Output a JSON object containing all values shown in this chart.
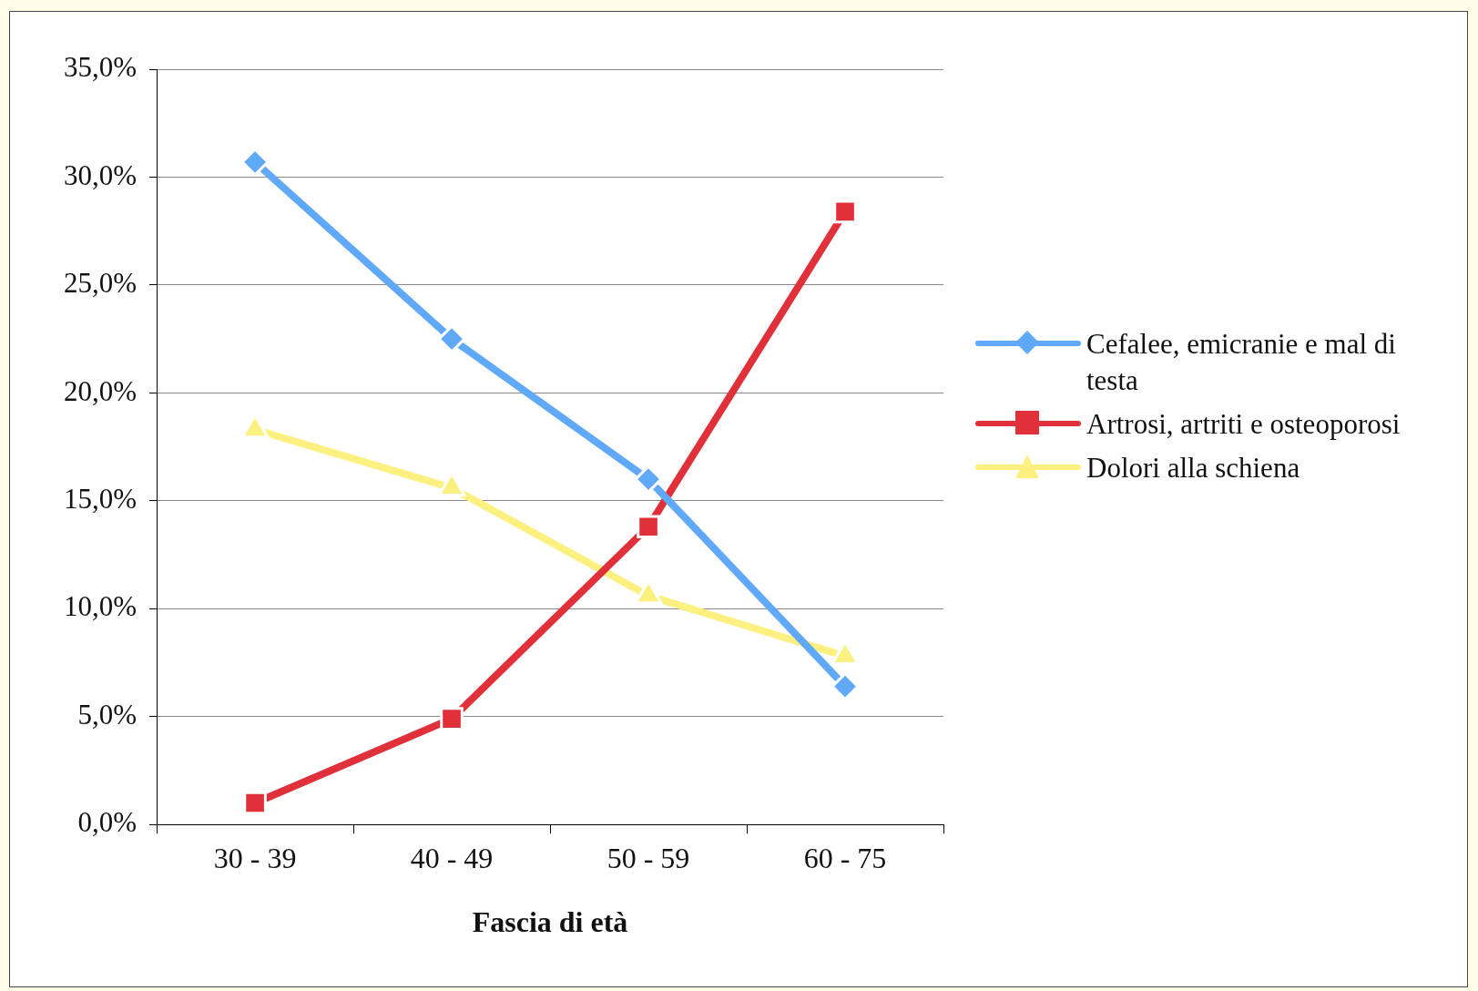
{
  "chart_data": {
    "type": "line",
    "xlabel": "Fascia di età",
    "categories": [
      "30 - 39",
      "40 - 49",
      "50 - 59",
      "60 - 75"
    ],
    "series": [
      {
        "name": "Cefalee, emicranie e mal di testa",
        "color": "#60a8f8",
        "marker": "diamond",
        "values": [
          30.7,
          22.5,
          16.0,
          6.4
        ]
      },
      {
        "name": "Artrosi, artriti e osteoporosi",
        "color": "#e0303a",
        "marker": "square",
        "values": [
          1.0,
          4.9,
          13.8,
          28.4
        ]
      },
      {
        "name": "Dolori alla schiena",
        "color": "#fcf080",
        "marker": "triangle",
        "values": [
          18.3,
          15.6,
          10.6,
          7.8
        ]
      }
    ],
    "ylim": [
      0,
      35
    ],
    "yticks": [
      {
        "value": 0,
        "label": "0,0%"
      },
      {
        "value": 5,
        "label": "5,0%"
      },
      {
        "value": 10,
        "label": "10,0%"
      },
      {
        "value": 15,
        "label": "15,0%"
      },
      {
        "value": 20,
        "label": "20,0%"
      },
      {
        "value": 25,
        "label": "25,0%"
      },
      {
        "value": 30,
        "label": "30,0%"
      },
      {
        "value": 35,
        "label": "35,0%"
      }
    ],
    "grid": "y",
    "legend": "right",
    "line_style": "solid"
  }
}
